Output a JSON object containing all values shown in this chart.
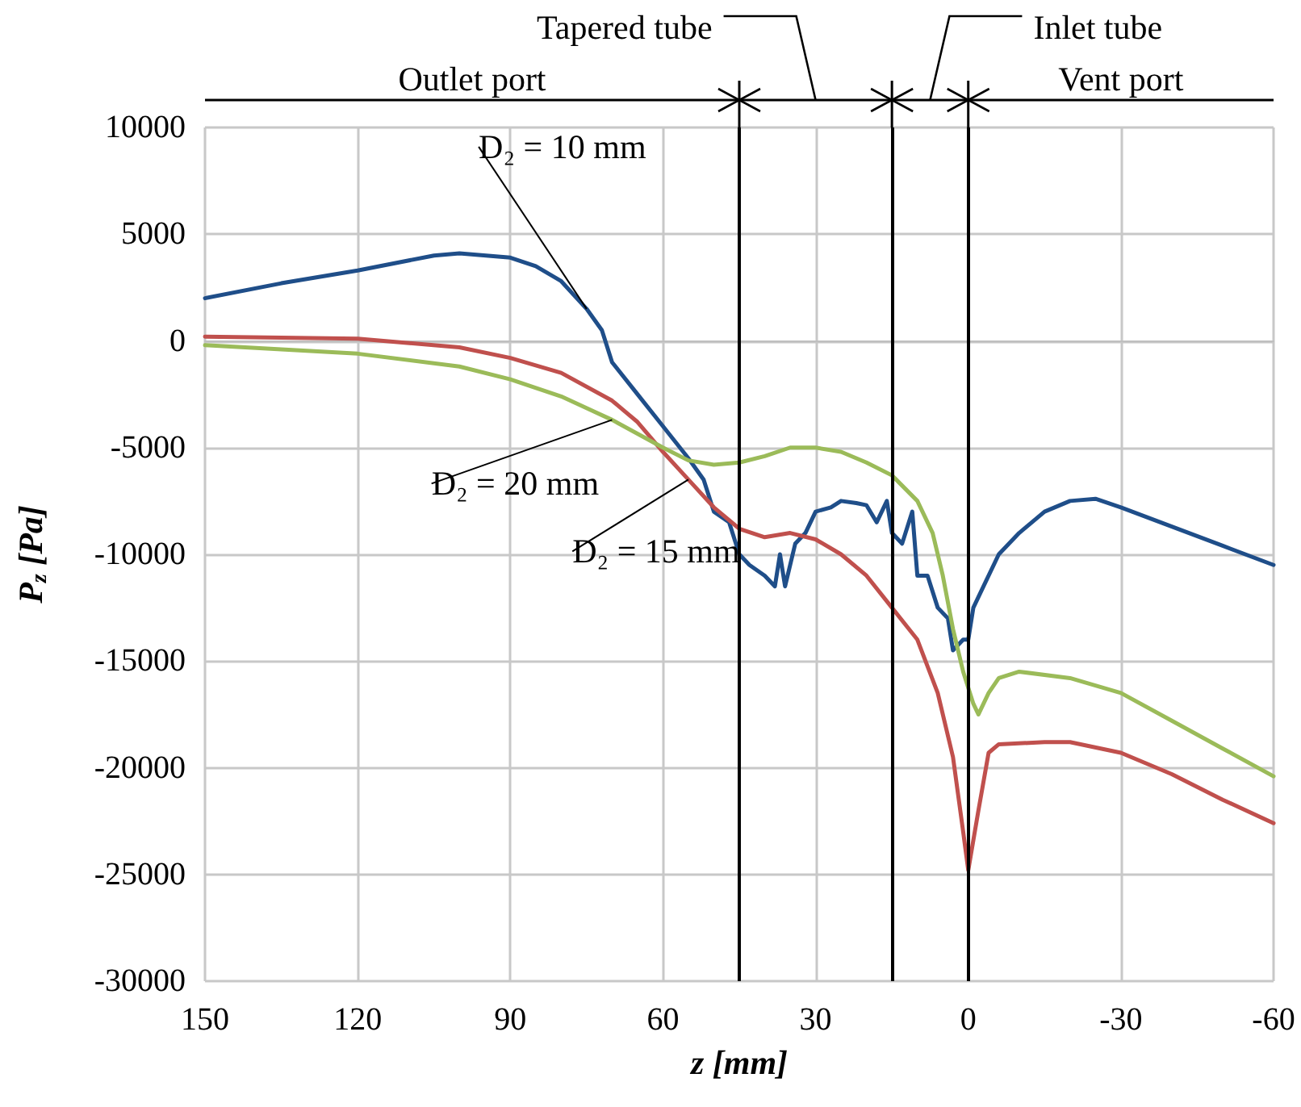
{
  "chart_data": {
    "type": "line",
    "xlabel": "z [mm]",
    "ylabel": "P$_{z}$ [Pa]",
    "xlim": [
      150,
      -60
    ],
    "xticks": [
      150,
      120,
      90,
      60,
      30,
      0,
      -30,
      -60
    ],
    "ylim": [
      -30000,
      10000
    ],
    "yticks": [
      -30000,
      -25000,
      -20000,
      -15000,
      -10000,
      -5000,
      0,
      5000,
      10000
    ],
    "grid": true,
    "legend": false,
    "line_style": "solid",
    "series": [
      {
        "name": "D₂ = 10 mm",
        "color": "#1f4e89",
        "x": [
          150,
          135,
          120,
          105,
          100,
          90,
          85,
          80,
          75,
          72,
          70,
          65,
          60,
          55,
          52,
          50,
          47,
          45,
          43,
          40,
          38,
          37,
          36,
          34,
          32,
          30,
          27,
          25,
          22,
          20,
          18,
          16,
          15,
          13,
          11,
          10,
          8,
          6,
          4,
          3,
          1,
          0,
          -1,
          -3,
          -6,
          -10,
          -15,
          -20,
          -25,
          -30,
          -40,
          -50,
          -60
        ],
        "values": [
          2000,
          2700,
          3300,
          4000,
          4100,
          3900,
          3500,
          2800,
          1500,
          500,
          -1000,
          -2500,
          -4000,
          -5500,
          -6500,
          -8000,
          -8500,
          -10000,
          -10500,
          -11000,
          -11500,
          -10000,
          -11500,
          -9500,
          -9000,
          -8000,
          -7800,
          -7500,
          -7600,
          -7700,
          -8500,
          -7500,
          -9000,
          -9500,
          -8000,
          -11000,
          -11000,
          -12500,
          -13000,
          -14500,
          -14000,
          -14000,
          -12500,
          -11500,
          -10000,
          -9000,
          -8000,
          -7500,
          -7400,
          -7800,
          -8700,
          -9600,
          -10500
        ]
      },
      {
        "name": "D₂ = 15 mm",
        "color": "#c0504d",
        "x": [
          150,
          120,
          100,
          90,
          80,
          70,
          65,
          60,
          55,
          50,
          45,
          40,
          35,
          30,
          25,
          20,
          15,
          10,
          6,
          3,
          1,
          0,
          -2,
          -4,
          -6,
          -15,
          -20,
          -30,
          -40,
          -50,
          -60
        ],
        "values": [
          200,
          100,
          -300,
          -800,
          -1500,
          -2800,
          -3800,
          -5200,
          -6500,
          -7800,
          -8800,
          -9200,
          -9000,
          -9300,
          -10000,
          -11000,
          -12500,
          -14000,
          -16500,
          -19500,
          -23000,
          -24800,
          -22000,
          -19300,
          -18900,
          -18800,
          -18800,
          -19300,
          -20300,
          -21500,
          -22600
        ]
      },
      {
        "name": "D₂ = 20 mm",
        "color": "#9bbb59",
        "x": [
          150,
          120,
          100,
          90,
          80,
          70,
          60,
          55,
          50,
          45,
          40,
          35,
          30,
          25,
          20,
          15,
          10,
          7,
          5,
          3,
          1,
          -1,
          -2,
          -4,
          -6,
          -10,
          -20,
          -30,
          -40,
          -50,
          -60
        ],
        "values": [
          -200,
          -600,
          -1200,
          -1800,
          -2600,
          -3700,
          -5000,
          -5600,
          -5800,
          -5700,
          -5400,
          -5000,
          -5000,
          -5200,
          -5700,
          -6300,
          -7500,
          -9000,
          -11000,
          -13500,
          -15500,
          -17000,
          -17500,
          -16500,
          -15800,
          -15500,
          -15800,
          -16500,
          -17800,
          -19100,
          -20400
        ]
      }
    ],
    "ref_lines": [
      {
        "axis": "x",
        "value": 45,
        "color": "#000000"
      },
      {
        "axis": "x",
        "value": 15,
        "color": "#000000"
      },
      {
        "axis": "x",
        "value": 0,
        "color": "#000000"
      }
    ],
    "annotations": [
      "Outlet port",
      "Tapered tube",
      "Inlet tube",
      "Vent port"
    ]
  }
}
